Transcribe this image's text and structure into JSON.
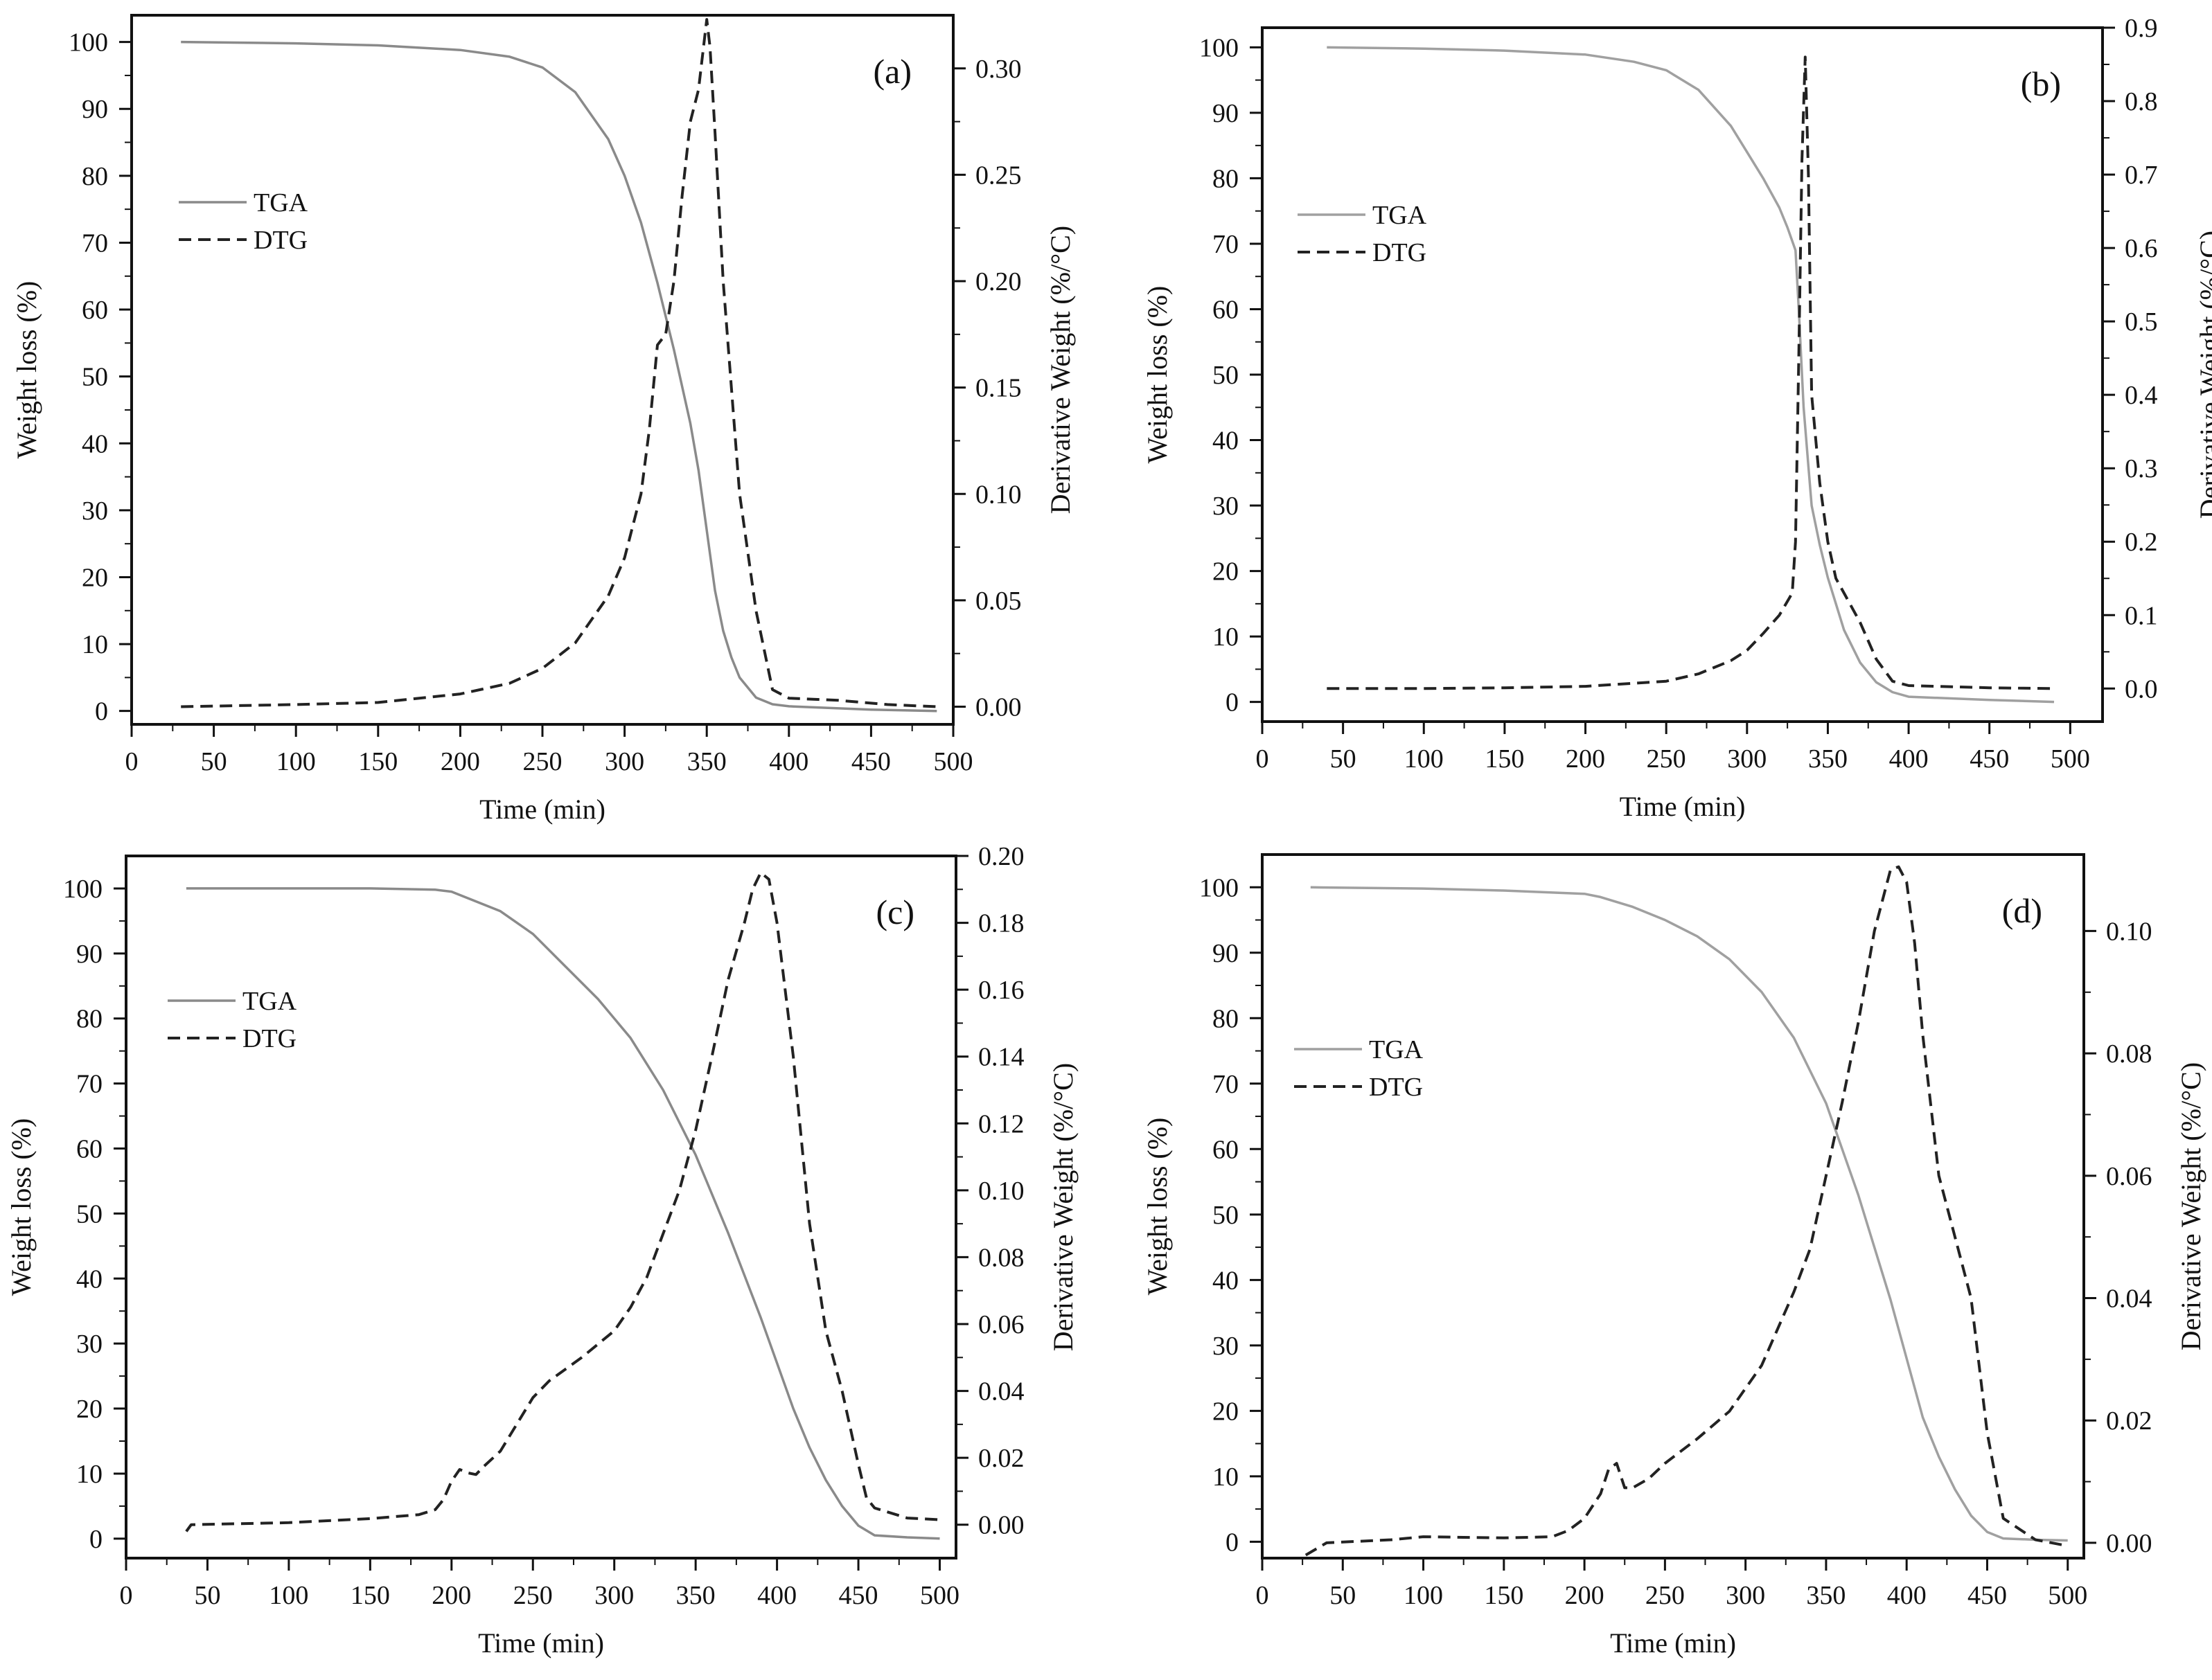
{
  "chart_data": [
    {
      "type": "line",
      "panel_label": "(a)",
      "xlabel": "Time (min)",
      "ylabel": "Weight loss (%)",
      "y2label": "Derivative Weight (%/°C)",
      "xlim": [
        0,
        500
      ],
      "ylim": [
        -2,
        104
      ],
      "y2lim": [
        -0.0083,
        0.325
      ],
      "xticks": [
        0,
        50,
        100,
        150,
        200,
        250,
        300,
        350,
        400,
        450,
        500
      ],
      "yticks": [
        0,
        10,
        20,
        30,
        40,
        50,
        60,
        70,
        80,
        90,
        100
      ],
      "y2ticks": [
        0.0,
        0.05,
        0.1,
        0.15,
        0.2,
        0.25,
        0.3
      ],
      "y2tick_labels": [
        "0.00",
        "0.05",
        "0.10",
        "0.15",
        "0.20",
        "0.25",
        "0.30"
      ],
      "legend": {
        "position": "upper-left",
        "entries": [
          "TGA",
          "DTG"
        ]
      },
      "series": [
        {
          "name": "TGA",
          "axis": "left",
          "style": "solid",
          "color": "#8a8a8a",
          "x": [
            30,
            100,
            150,
            200,
            230,
            250,
            270,
            290,
            300,
            310,
            320,
            330,
            340,
            345,
            350,
            355,
            360,
            365,
            370,
            380,
            390,
            400,
            450,
            490
          ],
          "y": [
            100,
            99.8,
            99.5,
            98.8,
            97.8,
            96.2,
            92.5,
            85.5,
            80,
            73,
            64,
            54,
            43,
            36,
            27,
            18,
            12,
            8,
            5,
            2,
            1,
            0.7,
            0.2,
            0
          ]
        },
        {
          "name": "DTG",
          "axis": "right",
          "style": "dashed",
          "color": "#222222",
          "x": [
            30,
            100,
            150,
            200,
            230,
            250,
            270,
            290,
            300,
            310,
            315,
            320,
            325,
            330,
            335,
            340,
            345,
            348,
            350,
            352,
            355,
            360,
            370,
            380,
            390,
            400,
            430,
            460,
            490
          ],
          "y": [
            0,
            0.001,
            0.002,
            0.006,
            0.011,
            0.018,
            0.03,
            0.052,
            0.07,
            0.1,
            0.13,
            0.17,
            0.175,
            0.2,
            0.24,
            0.275,
            0.29,
            0.31,
            0.323,
            0.31,
            0.27,
            0.2,
            0.1,
            0.045,
            0.008,
            0.004,
            0.003,
            0.001,
            0.0
          ]
        }
      ]
    },
    {
      "type": "line",
      "panel_label": "(b)",
      "xlabel": "Time (min)",
      "ylabel": "Weight loss (%)",
      "y2label": "Derivative Weight (%/°C)",
      "xlim": [
        0,
        520
      ],
      "ylim": [
        -3,
        103
      ],
      "y2lim": [
        -0.045,
        0.9
      ],
      "xticks": [
        0,
        50,
        100,
        150,
        200,
        250,
        300,
        350,
        400,
        450,
        500
      ],
      "yticks": [
        0,
        10,
        20,
        30,
        40,
        50,
        60,
        70,
        80,
        90,
        100
      ],
      "y2ticks": [
        0.0,
        0.1,
        0.2,
        0.3,
        0.4,
        0.5,
        0.6,
        0.7,
        0.8,
        0.9
      ],
      "y2tick_labels": [
        "0.0",
        "0.1",
        "0.2",
        "0.3",
        "0.4",
        "0.5",
        "0.6",
        "0.7",
        "0.8",
        "0.9"
      ],
      "legend": {
        "position": "upper-left",
        "entries": [
          "TGA",
          "DTG"
        ]
      },
      "series": [
        {
          "name": "TGA",
          "axis": "left",
          "style": "solid",
          "color": "#a0a0a0",
          "x": [
            40,
            100,
            150,
            200,
            230,
            250,
            270,
            290,
            300,
            310,
            320,
            325,
            330,
            332,
            335,
            338,
            340,
            345,
            350,
            355,
            360,
            370,
            380,
            390,
            400,
            450,
            490
          ],
          "y": [
            100,
            99.8,
            99.5,
            98.9,
            97.8,
            96.5,
            93.5,
            88,
            84,
            80,
            75.5,
            72.5,
            69,
            60,
            45,
            36,
            30,
            24,
            19,
            15,
            11,
            6,
            3,
            1.5,
            0.8,
            0.3,
            0
          ]
        },
        {
          "name": "DTG",
          "axis": "right",
          "style": "dashed",
          "color": "#222222",
          "x": [
            40,
            100,
            150,
            200,
            250,
            270,
            290,
            300,
            310,
            320,
            328,
            330,
            332,
            334,
            336,
            338,
            340,
            345,
            350,
            355,
            360,
            370,
            380,
            390,
            400,
            450,
            490
          ],
          "y": [
            0,
            0.0,
            0.001,
            0.003,
            0.01,
            0.02,
            0.038,
            0.052,
            0.075,
            0.1,
            0.13,
            0.2,
            0.45,
            0.72,
            0.86,
            0.7,
            0.4,
            0.28,
            0.2,
            0.15,
            0.13,
            0.09,
            0.04,
            0.01,
            0.004,
            0.001,
            0.0
          ]
        }
      ]
    },
    {
      "type": "line",
      "panel_label": "(c)",
      "xlabel": "Time (min)",
      "ylabel": "Weight loss (%)",
      "y2label": "Derivative Weight (%/°C)",
      "xlim": [
        0,
        510
      ],
      "ylim": [
        -3,
        105
      ],
      "y2lim": [
        -0.01,
        0.2
      ],
      "xticks": [
        0,
        50,
        100,
        150,
        200,
        250,
        300,
        350,
        400,
        450,
        500
      ],
      "yticks": [
        0,
        10,
        20,
        30,
        40,
        50,
        60,
        70,
        80,
        90,
        100
      ],
      "y2ticks": [
        0.0,
        0.02,
        0.04,
        0.06,
        0.08,
        0.1,
        0.12,
        0.14,
        0.16,
        0.18,
        0.2
      ],
      "y2tick_labels": [
        "0.00",
        "0.02",
        "0.04",
        "0.06",
        "0.08",
        "0.10",
        "0.12",
        "0.14",
        "0.16",
        "0.18",
        "0.20"
      ],
      "legend": {
        "position": "upper-left",
        "entries": [
          "TGA",
          "DTG"
        ]
      },
      "series": [
        {
          "name": "TGA",
          "axis": "left",
          "style": "solid",
          "color": "#8a8a8a",
          "x": [
            37,
            100,
            150,
            190,
            200,
            210,
            230,
            250,
            270,
            290,
            310,
            330,
            350,
            370,
            390,
            400,
            410,
            420,
            430,
            440,
            450,
            460,
            480,
            500
          ],
          "y": [
            100,
            100,
            100,
            99.8,
            99.5,
            98.5,
            96.5,
            93,
            88,
            83,
            77,
            69,
            59,
            47,
            34,
            27,
            20,
            14,
            9,
            5,
            2,
            0.5,
            0.2,
            0
          ]
        },
        {
          "name": "DTG",
          "axis": "right",
          "style": "dashed",
          "color": "#222222",
          "x": [
            37,
            40,
            100,
            150,
            180,
            190,
            195,
            200,
            205,
            210,
            215,
            220,
            230,
            240,
            250,
            260,
            280,
            300,
            310,
            320,
            330,
            340,
            350,
            360,
            370,
            380,
            385,
            390,
            395,
            400,
            410,
            420,
            430,
            440,
            450,
            455,
            460,
            480,
            500
          ],
          "y": [
            -0.002,
            0.0,
            0.0006,
            0.0018,
            0.003,
            0.0045,
            0.0075,
            0.013,
            0.0165,
            0.0155,
            0.015,
            0.0175,
            0.022,
            0.03,
            0.038,
            0.043,
            0.05,
            0.058,
            0.065,
            0.074,
            0.087,
            0.1,
            0.118,
            0.14,
            0.163,
            0.18,
            0.19,
            0.195,
            0.193,
            0.18,
            0.14,
            0.09,
            0.058,
            0.04,
            0.018,
            0.008,
            0.005,
            0.002,
            0.0015
          ]
        }
      ]
    },
    {
      "type": "line",
      "panel_label": "(d)",
      "xlabel": "Time (min)",
      "ylabel": "Weight loss (%)",
      "y2label": "Derivative Weight (%/°C)",
      "xlim": [
        0,
        510
      ],
      "ylim": [
        -2.5,
        105
      ],
      "y2lim": [
        -0.0025,
        0.1125
      ],
      "xticks": [
        0,
        50,
        100,
        150,
        200,
        250,
        300,
        350,
        400,
        450,
        500
      ],
      "yticks": [
        0,
        10,
        20,
        30,
        40,
        50,
        60,
        70,
        80,
        90,
        100
      ],
      "y2ticks": [
        0.0,
        0.02,
        0.04,
        0.06,
        0.08,
        0.1
      ],
      "y2tick_labels": [
        "0.00",
        "0.02",
        "0.04",
        "0.06",
        "0.08",
        "0.10"
      ],
      "legend": {
        "position": "upper-left",
        "entries": [
          "TGA",
          "DTG"
        ]
      },
      "series": [
        {
          "name": "TGA",
          "axis": "left",
          "style": "solid",
          "color": "#a0a0a0",
          "x": [
            30,
            100,
            150,
            200,
            210,
            230,
            250,
            270,
            290,
            310,
            330,
            350,
            370,
            390,
            400,
            410,
            420,
            430,
            440,
            450,
            460,
            480,
            500
          ],
          "y": [
            100,
            99.8,
            99.5,
            99,
            98.5,
            97,
            95,
            92.5,
            89,
            84,
            77,
            67,
            53,
            37,
            28,
            19,
            13,
            8,
            4,
            1.5,
            0.5,
            0.3,
            0.2
          ]
        },
        {
          "name": "DTG",
          "axis": "right",
          "style": "dashed",
          "color": "#222222",
          "x": [
            27,
            40,
            80,
            100,
            150,
            180,
            190,
            200,
            210,
            215,
            220,
            225,
            230,
            240,
            250,
            270,
            290,
            310,
            330,
            340,
            350,
            360,
            370,
            380,
            390,
            395,
            400,
            405,
            410,
            420,
            430,
            440,
            450,
            460,
            480,
            500
          ],
          "y": [
            -0.002,
            0.0,
            0.0005,
            0.001,
            0.0008,
            0.001,
            0.002,
            0.004,
            0.008,
            0.012,
            0.013,
            0.009,
            0.009,
            0.0105,
            0.013,
            0.017,
            0.0215,
            0.029,
            0.041,
            0.048,
            0.06,
            0.072,
            0.085,
            0.1,
            0.11,
            0.1105,
            0.108,
            0.098,
            0.083,
            0.06,
            0.05,
            0.04,
            0.018,
            0.004,
            0.0005,
            -0.0005
          ]
        }
      ]
    }
  ]
}
